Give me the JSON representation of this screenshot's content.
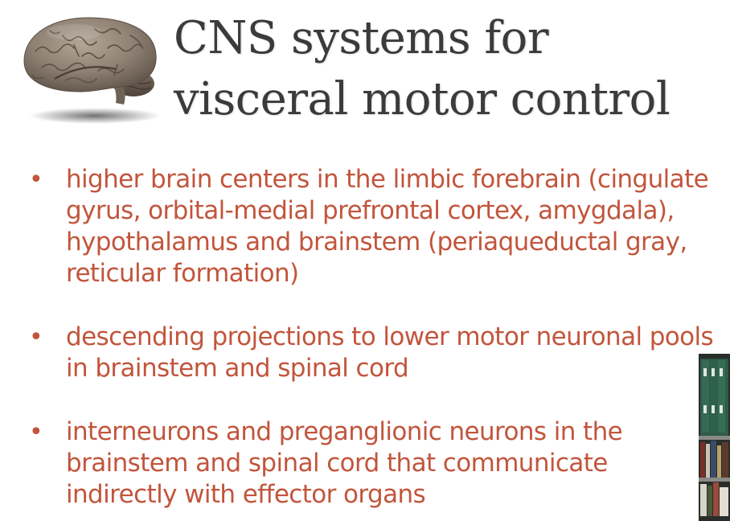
{
  "slide": {
    "title": "CNS systems for visceral motor control",
    "bullets": [
      {
        "text": "higher brain centers in the limbic forebrain (cingulate gyrus, orbital-medial prefrontal cortex, amygdala), hypothalamus and brainstem (periaqueductal gray, reticular formation)"
      },
      {
        "text": "descending projections to lower motor neuronal pools in brainstem and spinal cord"
      },
      {
        "text": "interneurons and preganglionic neurons in the brainstem and spinal cord that communicate indirectly with effector organs"
      }
    ]
  },
  "colors": {
    "title": "#3b3b3b",
    "bullet_text": "#c2553c",
    "background": "#ffffff"
  },
  "icons": {
    "brain": "brain-illustration",
    "bullet": "bullet-dot",
    "video": "presenter-video-thumbnail"
  }
}
